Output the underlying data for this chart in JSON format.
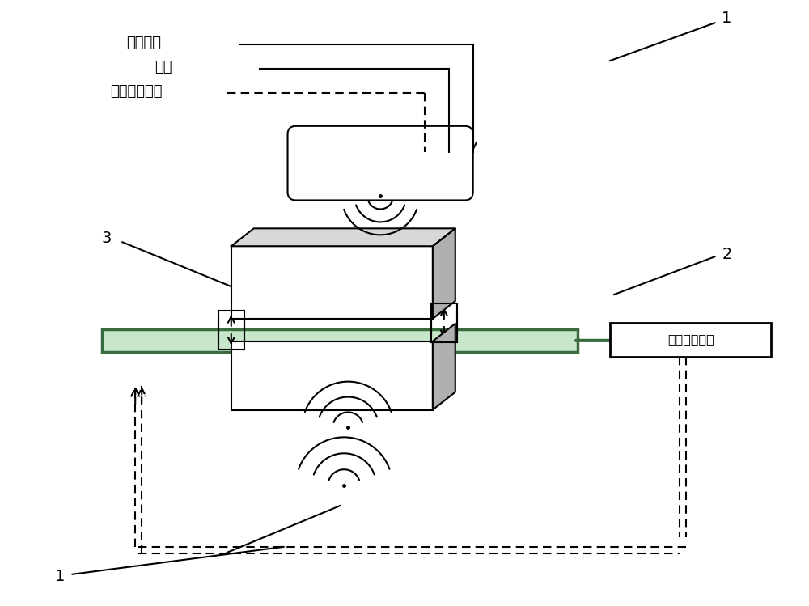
{
  "bg_color": "#ffffff",
  "line_color": "#000000",
  "gray_color": "#b0b0b0",
  "green_color": "#4a7c4e",
  "pipe_fill": "#d0e8d0",
  "label_1_top": "1",
  "label_2": "2",
  "label_3": "3",
  "label_1_bottom": "1",
  "text_qingjie": "清洁电能",
  "text_gudian": "谷电",
  "text_qita": "其他绿色能源",
  "text_user": "用户供暖设施",
  "figsize": [
    10.0,
    7.49
  ],
  "dpi": 100
}
